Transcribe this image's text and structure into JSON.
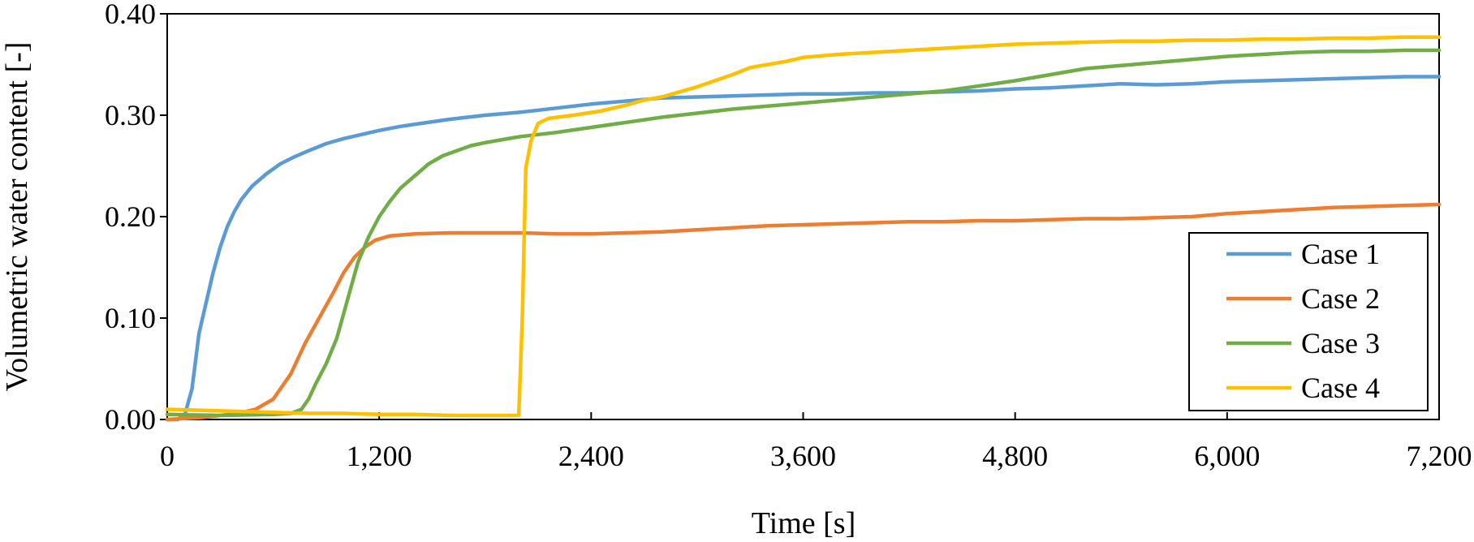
{
  "chart_data": {
    "type": "line",
    "xlabel": "Time [s]",
    "ylabel": "Volumetric water content [-]",
    "xlim": [
      0,
      7200
    ],
    "ylim": [
      0,
      0.4
    ],
    "x_ticks": [
      0,
      1200,
      2400,
      3600,
      4800,
      6000,
      7200
    ],
    "x_tick_labels": [
      "0",
      "1,200",
      "2,400",
      "3,600",
      "4,800",
      "6,000",
      "7,200"
    ],
    "y_ticks": [
      0,
      0.1,
      0.2,
      0.3,
      0.4
    ],
    "y_tick_labels": [
      "0.00",
      "0.10",
      "0.20",
      "0.30",
      "0.40"
    ],
    "grid": false,
    "legend_position": "bottom-right",
    "series": [
      {
        "name": "Case 1",
        "color": "#5b9bd5",
        "points": [
          [
            0,
            0.0
          ],
          [
            60,
            0.0
          ],
          [
            100,
            0.005
          ],
          [
            140,
            0.03
          ],
          [
            180,
            0.085
          ],
          [
            220,
            0.115
          ],
          [
            260,
            0.145
          ],
          [
            300,
            0.17
          ],
          [
            340,
            0.19
          ],
          [
            380,
            0.205
          ],
          [
            420,
            0.217
          ],
          [
            480,
            0.23
          ],
          [
            560,
            0.242
          ],
          [
            640,
            0.252
          ],
          [
            720,
            0.259
          ],
          [
            800,
            0.265
          ],
          [
            900,
            0.272
          ],
          [
            1000,
            0.277
          ],
          [
            1100,
            0.281
          ],
          [
            1200,
            0.285
          ],
          [
            1320,
            0.289
          ],
          [
            1440,
            0.292
          ],
          [
            1600,
            0.296
          ],
          [
            1800,
            0.3
          ],
          [
            2000,
            0.303
          ],
          [
            2200,
            0.307
          ],
          [
            2400,
            0.311
          ],
          [
            2600,
            0.314
          ],
          [
            2800,
            0.317
          ],
          [
            3000,
            0.318
          ],
          [
            3200,
            0.319
          ],
          [
            3400,
            0.32
          ],
          [
            3600,
            0.321
          ],
          [
            3800,
            0.321
          ],
          [
            4000,
            0.322
          ],
          [
            4200,
            0.322
          ],
          [
            4400,
            0.323
          ],
          [
            4600,
            0.324
          ],
          [
            4800,
            0.326
          ],
          [
            5000,
            0.327
          ],
          [
            5200,
            0.329
          ],
          [
            5400,
            0.331
          ],
          [
            5600,
            0.33
          ],
          [
            5800,
            0.331
          ],
          [
            6000,
            0.333
          ],
          [
            6200,
            0.334
          ],
          [
            6400,
            0.335
          ],
          [
            6600,
            0.336
          ],
          [
            6800,
            0.337
          ],
          [
            7000,
            0.338
          ],
          [
            7200,
            0.338
          ]
        ]
      },
      {
        "name": "Case 2",
        "color": "#ed7d31",
        "points": [
          [
            0,
            0.0
          ],
          [
            200,
            0.002
          ],
          [
            400,
            0.006
          ],
          [
            500,
            0.01
          ],
          [
            600,
            0.02
          ],
          [
            700,
            0.045
          ],
          [
            780,
            0.075
          ],
          [
            860,
            0.1
          ],
          [
            940,
            0.125
          ],
          [
            1000,
            0.145
          ],
          [
            1060,
            0.16
          ],
          [
            1120,
            0.17
          ],
          [
            1180,
            0.177
          ],
          [
            1260,
            0.181
          ],
          [
            1400,
            0.183
          ],
          [
            1600,
            0.184
          ],
          [
            1800,
            0.184
          ],
          [
            2000,
            0.184
          ],
          [
            2200,
            0.183
          ],
          [
            2400,
            0.183
          ],
          [
            2600,
            0.184
          ],
          [
            2800,
            0.185
          ],
          [
            3000,
            0.187
          ],
          [
            3200,
            0.189
          ],
          [
            3400,
            0.191
          ],
          [
            3600,
            0.192
          ],
          [
            3800,
            0.193
          ],
          [
            4000,
            0.194
          ],
          [
            4200,
            0.195
          ],
          [
            4400,
            0.195
          ],
          [
            4600,
            0.196
          ],
          [
            4800,
            0.196
          ],
          [
            5000,
            0.197
          ],
          [
            5200,
            0.198
          ],
          [
            5400,
            0.198
          ],
          [
            5600,
            0.199
          ],
          [
            5800,
            0.2
          ],
          [
            6000,
            0.203
          ],
          [
            6200,
            0.205
          ],
          [
            6400,
            0.207
          ],
          [
            6600,
            0.209
          ],
          [
            6800,
            0.21
          ],
          [
            7000,
            0.211
          ],
          [
            7200,
            0.212
          ]
        ]
      },
      {
        "name": "Case 3",
        "color": "#70ad47",
        "points": [
          [
            0,
            0.005
          ],
          [
            300,
            0.004
          ],
          [
            600,
            0.005
          ],
          [
            700,
            0.006
          ],
          [
            760,
            0.01
          ],
          [
            800,
            0.02
          ],
          [
            840,
            0.035
          ],
          [
            900,
            0.055
          ],
          [
            960,
            0.08
          ],
          [
            1000,
            0.105
          ],
          [
            1040,
            0.13
          ],
          [
            1080,
            0.155
          ],
          [
            1140,
            0.18
          ],
          [
            1200,
            0.2
          ],
          [
            1260,
            0.215
          ],
          [
            1320,
            0.228
          ],
          [
            1400,
            0.24
          ],
          [
            1480,
            0.252
          ],
          [
            1560,
            0.26
          ],
          [
            1640,
            0.265
          ],
          [
            1720,
            0.27
          ],
          [
            1800,
            0.273
          ],
          [
            1900,
            0.276
          ],
          [
            2000,
            0.279
          ],
          [
            2200,
            0.283
          ],
          [
            2400,
            0.288
          ],
          [
            2600,
            0.293
          ],
          [
            2800,
            0.298
          ],
          [
            3000,
            0.302
          ],
          [
            3200,
            0.306
          ],
          [
            3400,
            0.309
          ],
          [
            3600,
            0.312
          ],
          [
            3800,
            0.315
          ],
          [
            4000,
            0.318
          ],
          [
            4200,
            0.321
          ],
          [
            4400,
            0.324
          ],
          [
            4600,
            0.329
          ],
          [
            4800,
            0.334
          ],
          [
            5000,
            0.34
          ],
          [
            5200,
            0.346
          ],
          [
            5400,
            0.349
          ],
          [
            5600,
            0.352
          ],
          [
            5800,
            0.355
          ],
          [
            6000,
            0.358
          ],
          [
            6200,
            0.36
          ],
          [
            6400,
            0.362
          ],
          [
            6600,
            0.363
          ],
          [
            6800,
            0.363
          ],
          [
            7000,
            0.364
          ],
          [
            7200,
            0.364
          ]
        ]
      },
      {
        "name": "Case 4",
        "color": "#ffc000",
        "points": [
          [
            0,
            0.01
          ],
          [
            200,
            0.009
          ],
          [
            400,
            0.008
          ],
          [
            600,
            0.007
          ],
          [
            800,
            0.006
          ],
          [
            1000,
            0.006
          ],
          [
            1200,
            0.005
          ],
          [
            1400,
            0.005
          ],
          [
            1600,
            0.004
          ],
          [
            1800,
            0.004
          ],
          [
            1960,
            0.004
          ],
          [
            1990,
            0.004
          ],
          [
            2010,
            0.1
          ],
          [
            2030,
            0.248
          ],
          [
            2060,
            0.275
          ],
          [
            2100,
            0.292
          ],
          [
            2160,
            0.297
          ],
          [
            2300,
            0.3
          ],
          [
            2450,
            0.304
          ],
          [
            2600,
            0.31
          ],
          [
            2700,
            0.315
          ],
          [
            2800,
            0.318
          ],
          [
            2900,
            0.323
          ],
          [
            3000,
            0.328
          ],
          [
            3100,
            0.334
          ],
          [
            3200,
            0.34
          ],
          [
            3300,
            0.347
          ],
          [
            3400,
            0.35
          ],
          [
            3500,
            0.353
          ],
          [
            3600,
            0.357
          ],
          [
            3800,
            0.36
          ],
          [
            4000,
            0.362
          ],
          [
            4200,
            0.364
          ],
          [
            4400,
            0.366
          ],
          [
            4600,
            0.368
          ],
          [
            4800,
            0.37
          ],
          [
            5000,
            0.371
          ],
          [
            5200,
            0.372
          ],
          [
            5400,
            0.373
          ],
          [
            5600,
            0.373
          ],
          [
            5800,
            0.374
          ],
          [
            6000,
            0.374
          ],
          [
            6200,
            0.375
          ],
          [
            6400,
            0.375
          ],
          [
            6600,
            0.376
          ],
          [
            6800,
            0.376
          ],
          [
            7000,
            0.377
          ],
          [
            7200,
            0.377
          ]
        ]
      }
    ]
  }
}
